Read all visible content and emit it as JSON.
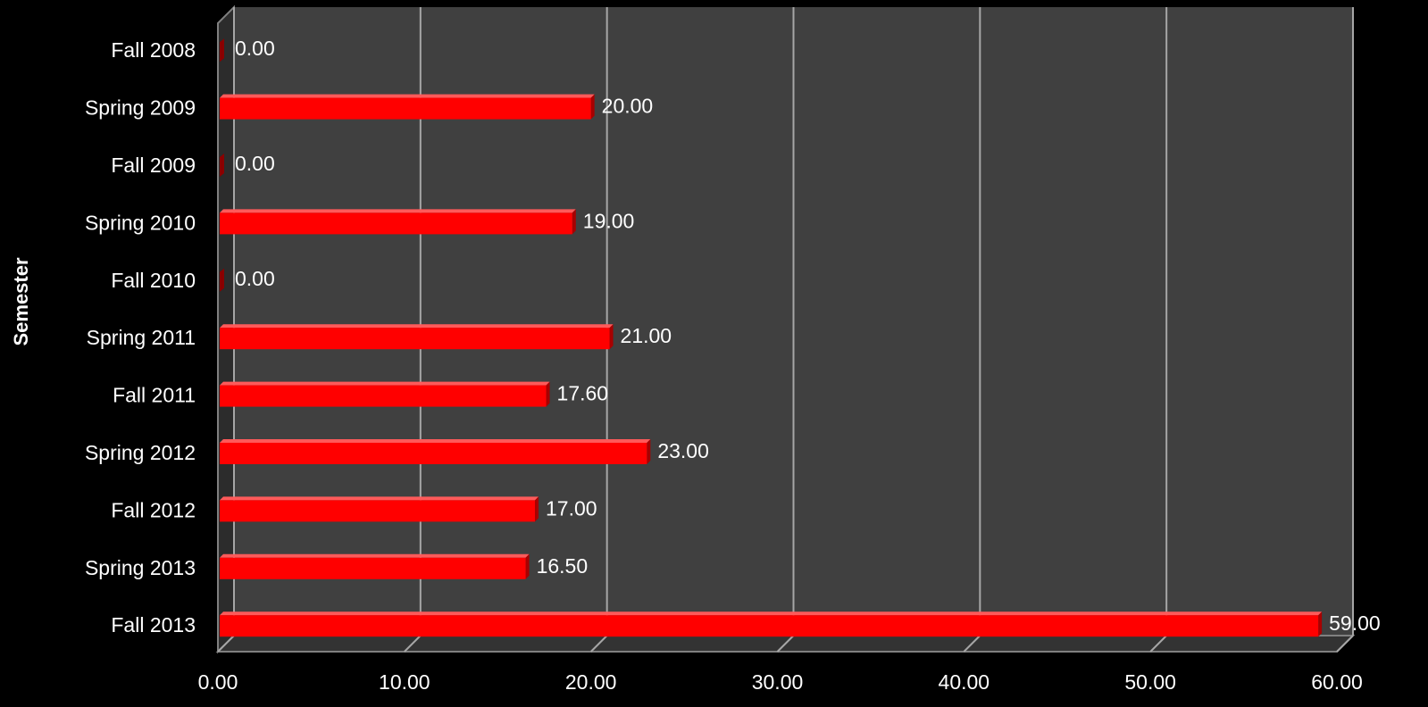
{
  "chart_data": {
    "type": "bar",
    "orientation": "horizontal",
    "style": "3d",
    "categories": [
      "Fall 2008",
      "Spring 2009",
      "Fall 2009",
      "Spring 2010",
      "Fall 2010",
      "Spring 2011",
      "Fall 2011",
      "Spring 2012",
      "Fall 2012",
      "Spring 2013",
      "Fall 2013"
    ],
    "values": [
      0,
      20,
      0,
      19,
      0,
      21,
      17.6,
      23,
      17,
      16.5,
      59
    ],
    "value_labels": [
      "0.00",
      "20.00",
      "0.00",
      "19.00",
      "0.00",
      "21.00",
      "17.60",
      "23.00",
      "17.00",
      "16.50",
      "59.00"
    ],
    "title": "",
    "xlabel": "",
    "ylabel": "Semester",
    "xlim": [
      0,
      60
    ],
    "x_ticks": [
      0,
      10,
      20,
      30,
      40,
      50,
      60
    ],
    "x_tick_labels": [
      "0.00",
      "10.00",
      "20.00",
      "30.00",
      "40.00",
      "50.00",
      "60.00"
    ],
    "grid": true,
    "legend": "none",
    "colors": {
      "background": "#000000",
      "plot_back_wall": "#404040",
      "plot_floor": "#333333",
      "gridline": "#a6a6a6",
      "bar": "#ff0000",
      "bar_top": "#ff5a5a",
      "bar_side": "#a80000",
      "text": "#ffffff"
    }
  }
}
